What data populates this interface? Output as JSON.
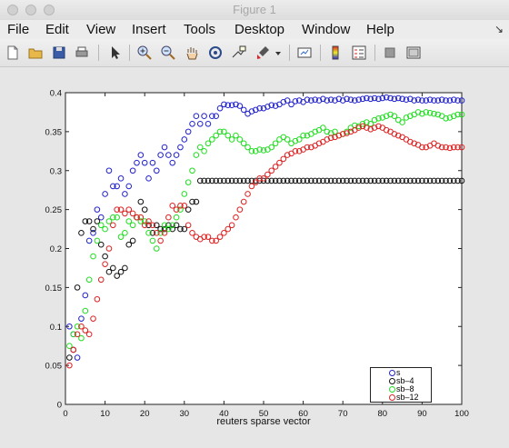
{
  "window": {
    "title": "Figure 1"
  },
  "menu": [
    "File",
    "Edit",
    "View",
    "Insert",
    "Tools",
    "Desktop",
    "Window",
    "Help"
  ],
  "toolbar": [
    "new-figure-icon",
    "open-file-icon",
    "save-icon",
    "print-icon",
    "pointer-icon",
    "zoom-in-icon",
    "zoom-out-icon",
    "pan-hand-icon",
    "rotate-3d-icon",
    "data-cursor-icon",
    "brush-icon",
    "brush-dropdown-icon",
    "link-plot-icon",
    "colorbar-icon",
    "legend-icon",
    "hide-plot-tools-icon",
    "show-plot-tools-icon"
  ],
  "colors": {
    "s": "#2222cc",
    "sb-4": "#111111",
    "sb-8": "#22dd22",
    "sb-12": "#dd2222"
  },
  "chart_data": {
    "type": "scatter",
    "title": "",
    "xlabel": "reuters sparse vector",
    "ylabel": "",
    "xlim": [
      0,
      100
    ],
    "ylim": [
      0,
      0.4
    ],
    "xticks": [
      "0",
      "10",
      "20",
      "30",
      "40",
      "50",
      "60",
      "70",
      "80",
      "90",
      "100"
    ],
    "yticks": [
      "0",
      "0.05",
      "0.1",
      "0.15",
      "0.2",
      "0.25",
      "0.3",
      "0.35",
      "0.4"
    ],
    "legend_position": "bottom-right",
    "grid": false,
    "series": [
      {
        "name": "s",
        "color": "#2222cc",
        "x": [
          1,
          2,
          3,
          4,
          5,
          6,
          7,
          8,
          9,
          10,
          11,
          12,
          13,
          14,
          15,
          16,
          17,
          18,
          19,
          20,
          21,
          22,
          23,
          24,
          25,
          26,
          27,
          28,
          29,
          30,
          31,
          32,
          33,
          34,
          35,
          36,
          37,
          38,
          39,
          40,
          41,
          42,
          43,
          44,
          45,
          46,
          47,
          48,
          49,
          50,
          51,
          52,
          53,
          54,
          55,
          56,
          57,
          58,
          59,
          60,
          61,
          62,
          63,
          64,
          65,
          66,
          67,
          68,
          69,
          70,
          71,
          72,
          73,
          74,
          75,
          76,
          77,
          78,
          79,
          80,
          81,
          82,
          83,
          84,
          85,
          86,
          87,
          88,
          89,
          90,
          91,
          92,
          93,
          94,
          95,
          96,
          97,
          98,
          99,
          100
        ],
        "y": [
          0.1,
          0.09,
          0.06,
          0.11,
          0.14,
          0.21,
          0.22,
          0.25,
          0.24,
          0.27,
          0.3,
          0.28,
          0.28,
          0.29,
          0.27,
          0.28,
          0.3,
          0.31,
          0.32,
          0.31,
          0.29,
          0.31,
          0.3,
          0.32,
          0.33,
          0.32,
          0.31,
          0.32,
          0.33,
          0.34,
          0.35,
          0.36,
          0.37,
          0.36,
          0.37,
          0.36,
          0.37,
          0.37,
          0.38,
          0.385,
          0.384,
          0.384,
          0.385,
          0.383,
          0.378,
          0.373,
          0.376,
          0.378,
          0.38,
          0.38,
          0.382,
          0.384,
          0.383,
          0.385,
          0.388,
          0.39,
          0.385,
          0.389,
          0.39,
          0.388,
          0.391,
          0.39,
          0.391,
          0.39,
          0.392,
          0.39,
          0.391,
          0.39,
          0.392,
          0.39,
          0.392,
          0.391,
          0.39,
          0.391,
          0.392,
          0.393,
          0.392,
          0.393,
          0.392,
          0.393,
          0.394,
          0.393,
          0.392,
          0.393,
          0.392,
          0.391,
          0.392,
          0.39,
          0.391,
          0.39,
          0.39,
          0.391,
          0.39,
          0.39,
          0.391,
          0.39,
          0.39,
          0.391,
          0.39,
          0.39
        ]
      },
      {
        "name": "sb–4",
        "color": "#111111",
        "x": [
          1,
          2,
          3,
          4,
          5,
          6,
          7,
          8,
          9,
          10,
          11,
          12,
          13,
          14,
          15,
          16,
          17,
          18,
          19,
          20,
          21,
          22,
          23,
          24,
          25,
          26,
          27,
          28,
          29,
          30,
          31,
          32,
          33,
          34,
          35,
          36,
          37,
          38,
          39,
          40,
          41,
          42,
          43,
          44,
          45,
          46,
          47,
          48,
          49,
          50,
          51,
          52,
          53,
          54,
          55,
          56,
          57,
          58,
          59,
          60,
          61,
          62,
          63,
          64,
          65,
          66,
          67,
          68,
          69,
          70,
          71,
          72,
          73,
          74,
          75,
          76,
          77,
          78,
          79,
          80,
          81,
          82,
          83,
          84,
          85,
          86,
          87,
          88,
          89,
          90,
          91,
          92,
          93,
          94,
          95,
          96,
          97,
          98,
          99,
          100
        ],
        "y": [
          0.06,
          0.07,
          0.15,
          0.22,
          0.235,
          0.235,
          0.225,
          0.235,
          0.205,
          0.19,
          0.17,
          0.175,
          0.165,
          0.17,
          0.175,
          0.205,
          0.21,
          0.24,
          0.26,
          0.25,
          0.23,
          0.22,
          0.23,
          0.225,
          0.225,
          0.23,
          0.225,
          0.23,
          0.225,
          0.225,
          0.25,
          0.26,
          0.26,
          0.287,
          0.287,
          0.287,
          0.287,
          0.287,
          0.287,
          0.287,
          0.287,
          0.287,
          0.287,
          0.287,
          0.287,
          0.287,
          0.287,
          0.287,
          0.287,
          0.287,
          0.287,
          0.287,
          0.287,
          0.287,
          0.287,
          0.287,
          0.287,
          0.287,
          0.287,
          0.287,
          0.287,
          0.287,
          0.287,
          0.287,
          0.287,
          0.287,
          0.287,
          0.287,
          0.287,
          0.287,
          0.287,
          0.287,
          0.287,
          0.287,
          0.287,
          0.287,
          0.287,
          0.287,
          0.287,
          0.287,
          0.287,
          0.287,
          0.287,
          0.287,
          0.287,
          0.287,
          0.287,
          0.287,
          0.287,
          0.287,
          0.287,
          0.287,
          0.287,
          0.287,
          0.287,
          0.287,
          0.287,
          0.287,
          0.287,
          0.287
        ]
      },
      {
        "name": "sb–8",
        "color": "#22dd22",
        "x": [
          1,
          2,
          3,
          4,
          5,
          6,
          7,
          8,
          9,
          10,
          11,
          12,
          13,
          14,
          15,
          16,
          17,
          18,
          19,
          20,
          21,
          22,
          23,
          24,
          25,
          26,
          27,
          28,
          29,
          30,
          31,
          32,
          33,
          34,
          35,
          36,
          37,
          38,
          39,
          40,
          41,
          42,
          43,
          44,
          45,
          46,
          47,
          48,
          49,
          50,
          51,
          52,
          53,
          54,
          55,
          56,
          57,
          58,
          59,
          60,
          61,
          62,
          63,
          64,
          65,
          66,
          67,
          68,
          69,
          70,
          71,
          72,
          73,
          74,
          75,
          76,
          77,
          78,
          79,
          80,
          81,
          82,
          83,
          84,
          85,
          86,
          87,
          88,
          89,
          90,
          91,
          92,
          93,
          94,
          95,
          96,
          97,
          98,
          99,
          100
        ],
        "y": [
          0.075,
          0.09,
          0.1,
          0.085,
          0.12,
          0.16,
          0.19,
          0.21,
          0.23,
          0.225,
          0.235,
          0.24,
          0.24,
          0.215,
          0.22,
          0.235,
          0.23,
          0.24,
          0.235,
          0.235,
          0.22,
          0.21,
          0.2,
          0.22,
          0.23,
          0.225,
          0.23,
          0.24,
          0.25,
          0.27,
          0.285,
          0.3,
          0.32,
          0.33,
          0.325,
          0.335,
          0.34,
          0.345,
          0.35,
          0.35,
          0.345,
          0.34,
          0.345,
          0.34,
          0.335,
          0.33,
          0.325,
          0.325,
          0.327,
          0.326,
          0.327,
          0.33,
          0.335,
          0.34,
          0.343,
          0.34,
          0.335,
          0.338,
          0.34,
          0.345,
          0.345,
          0.347,
          0.35,
          0.352,
          0.355,
          0.35,
          0.348,
          0.35,
          0.345,
          0.347,
          0.35,
          0.355,
          0.358,
          0.357,
          0.36,
          0.362,
          0.36,
          0.365,
          0.367,
          0.368,
          0.37,
          0.372,
          0.37,
          0.365,
          0.362,
          0.368,
          0.37,
          0.372,
          0.375,
          0.373,
          0.375,
          0.374,
          0.373,
          0.372,
          0.37,
          0.367,
          0.368,
          0.37,
          0.372,
          0.372
        ]
      },
      {
        "name": "sb–12",
        "color": "#dd2222",
        "x": [
          1,
          2,
          3,
          4,
          5,
          6,
          7,
          8,
          9,
          10,
          11,
          12,
          13,
          14,
          15,
          16,
          17,
          18,
          19,
          20,
          21,
          22,
          23,
          24,
          25,
          26,
          27,
          28,
          29,
          30,
          31,
          32,
          33,
          34,
          35,
          36,
          37,
          38,
          39,
          40,
          41,
          42,
          43,
          44,
          45,
          46,
          47,
          48,
          49,
          50,
          51,
          52,
          53,
          54,
          55,
          56,
          57,
          58,
          59,
          60,
          61,
          62,
          63,
          64,
          65,
          66,
          67,
          68,
          69,
          70,
          71,
          72,
          73,
          74,
          75,
          76,
          77,
          78,
          79,
          80,
          81,
          82,
          83,
          84,
          85,
          86,
          87,
          88,
          89,
          90,
          91,
          92,
          93,
          94,
          95,
          96,
          97,
          98,
          99,
          100
        ],
        "y": [
          0.05,
          0.07,
          0.09,
          0.1,
          0.095,
          0.09,
          0.11,
          0.135,
          0.16,
          0.18,
          0.2,
          0.23,
          0.25,
          0.25,
          0.245,
          0.25,
          0.245,
          0.24,
          0.24,
          0.23,
          0.235,
          0.23,
          0.22,
          0.21,
          0.22,
          0.24,
          0.255,
          0.25,
          0.255,
          0.255,
          0.23,
          0.22,
          0.215,
          0.212,
          0.215,
          0.215,
          0.21,
          0.21,
          0.215,
          0.22,
          0.225,
          0.23,
          0.24,
          0.25,
          0.26,
          0.27,
          0.28,
          0.285,
          0.29,
          0.29,
          0.295,
          0.3,
          0.305,
          0.31,
          0.315,
          0.32,
          0.322,
          0.325,
          0.325,
          0.327,
          0.33,
          0.33,
          0.332,
          0.335,
          0.337,
          0.34,
          0.342,
          0.343,
          0.345,
          0.347,
          0.348,
          0.35,
          0.352,
          0.355,
          0.357,
          0.355,
          0.353,
          0.355,
          0.357,
          0.355,
          0.352,
          0.35,
          0.347,
          0.345,
          0.343,
          0.34,
          0.337,
          0.335,
          0.333,
          0.33,
          0.33,
          0.332,
          0.335,
          0.332,
          0.33,
          0.33,
          0.329,
          0.33,
          0.33,
          0.33
        ]
      }
    ]
  }
}
